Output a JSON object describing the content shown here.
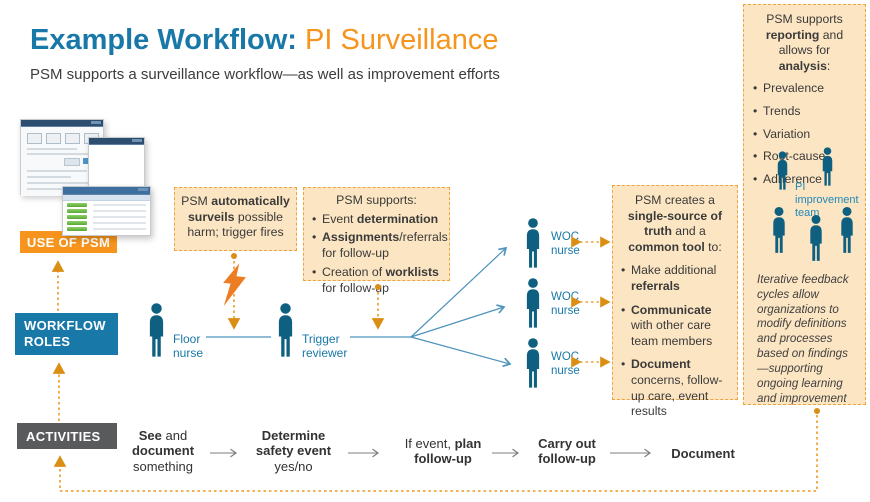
{
  "title": {
    "main": "Example Workflow:",
    "accent": " PI Surveillance"
  },
  "subtitle": "PSM supports a surveillance workflow—as well as improvement efforts",
  "side_labels": {
    "use_of_psm": "USE OF PSM",
    "workflow_roles": "WORKFLOW ROLES",
    "activities": "ACTIVITIES"
  },
  "callouts": {
    "surveil": {
      "runs": [
        {
          "t": "PSM "
        },
        {
          "t": "automatically surveils",
          "b": true
        },
        {
          "t": " possible harm; trigger fires"
        }
      ]
    },
    "supports": {
      "title": "PSM supports:",
      "bullets": [
        [
          {
            "t": "Event "
          },
          {
            "t": "determination",
            "b": true
          }
        ],
        [
          {
            "t": "Assignments",
            "b": true
          },
          {
            "t": "/referrals for follow-up"
          }
        ],
        [
          {
            "t": "Creation of "
          },
          {
            "t": "worklists",
            "b": true
          },
          {
            "t": " for follow-up"
          }
        ]
      ]
    },
    "creates": {
      "title_runs": [
        {
          "t": "PSM creates a "
        },
        {
          "t": "single-source of truth",
          "b": true
        },
        {
          "t": " and a "
        },
        {
          "t": "common tool",
          "b": true
        },
        {
          "t": " to:"
        }
      ],
      "bullets": [
        [
          {
            "t": "Make additional "
          },
          {
            "t": "referrals",
            "b": true
          }
        ],
        [
          {
            "t": "Communicate",
            "b": true
          },
          {
            "t": " with other care team members"
          }
        ],
        [
          {
            "t": "Document",
            "b": true
          },
          {
            "t": " concerns, follow-up care, event results"
          }
        ]
      ]
    },
    "reporting": {
      "title_runs": [
        {
          "t": "PSM supports "
        },
        {
          "t": "reporting",
          "b": true
        },
        {
          "t": " and allows for "
        },
        {
          "t": "analysis",
          "b": true
        },
        {
          "t": ":"
        }
      ],
      "bullets": [
        "Prevalence",
        "Trends",
        "Variation",
        "Root-cause",
        "Adherence"
      ],
      "team_label": "PI improvement team",
      "note": "Iterative feedback cycles allow organizations to modify definitions and processes based on findings—supporting ongoing learning and improvement"
    }
  },
  "roles": {
    "floor_nurse": "Floor nurse",
    "trigger_reviewer": "Trigger reviewer",
    "woc_nurse": "WOC nurse"
  },
  "activities": {
    "steps": [
      [
        {
          "t": "See",
          "b": true
        },
        {
          "t": " and "
        },
        {
          "t": "document",
          "b": true
        },
        {
          "t": " something"
        }
      ],
      [
        {
          "t": "Determine safety event",
          "b": true
        },
        {
          "t": " yes/no"
        }
      ],
      [
        {
          "t": "If event, "
        },
        {
          "t": "plan follow-up",
          "b": true
        }
      ],
      [
        {
          "t": "Carry out follow-up",
          "b": true
        }
      ],
      [
        {
          "t": "Document",
          "b": true
        }
      ]
    ]
  },
  "icons": {
    "person": "person-silhouette",
    "lightning": "lightning-bolt",
    "screenshots": [
      "psm-form-screen",
      "psm-report-screen",
      "psm-worklist-screen"
    ]
  },
  "colors": {
    "brand_blue": "#1878a8",
    "accent_orange": "#f7941d",
    "callout_bg": "#fce5c2",
    "callout_border": "#f0a43c",
    "person_blue": "#0e5f80",
    "activities_gray": "#595a5c",
    "connector_blue": "#4e94bc",
    "connector_orange": "#db8e14"
  }
}
